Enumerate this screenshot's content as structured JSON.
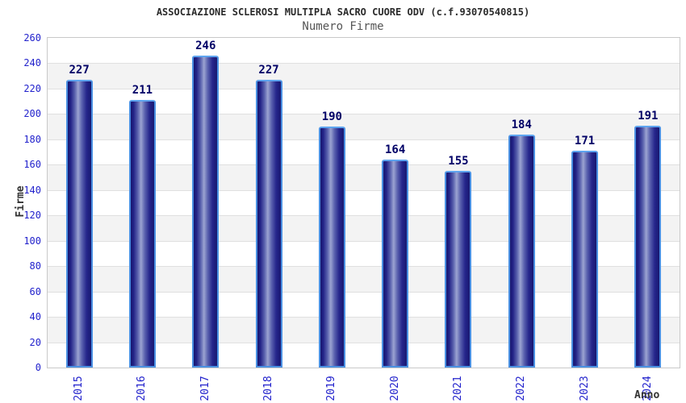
{
  "chart_data": {
    "type": "bar",
    "title": "ASSOCIAZIONE SCLEROSI MULTIPLA SACRO CUORE ODV (c.f.93070540815)",
    "subtitle": "Numero Firme",
    "xlabel": "Anno",
    "ylabel": "Firme",
    "categories": [
      "2015",
      "2016",
      "2017",
      "2018",
      "2019",
      "2020",
      "2021",
      "2022",
      "2023",
      "2024"
    ],
    "values": [
      227,
      211,
      246,
      227,
      190,
      164,
      155,
      184,
      171,
      191
    ],
    "ylim": [
      0,
      260
    ],
    "ytick_step": 20,
    "grid": "horizontal-bands-alternating",
    "legend": "none",
    "colors": {
      "bar_dark": "#181870",
      "bar_highlight": "#9ba3d1",
      "bar_border": "#4a90e2",
      "tick_label": "#2222cc",
      "value_label": "#000066",
      "band_gray": "#f3f3f3",
      "gridline": "#e0e0e0",
      "title_text": "#2b2b2b",
      "subtitle_text": "#555555"
    }
  }
}
